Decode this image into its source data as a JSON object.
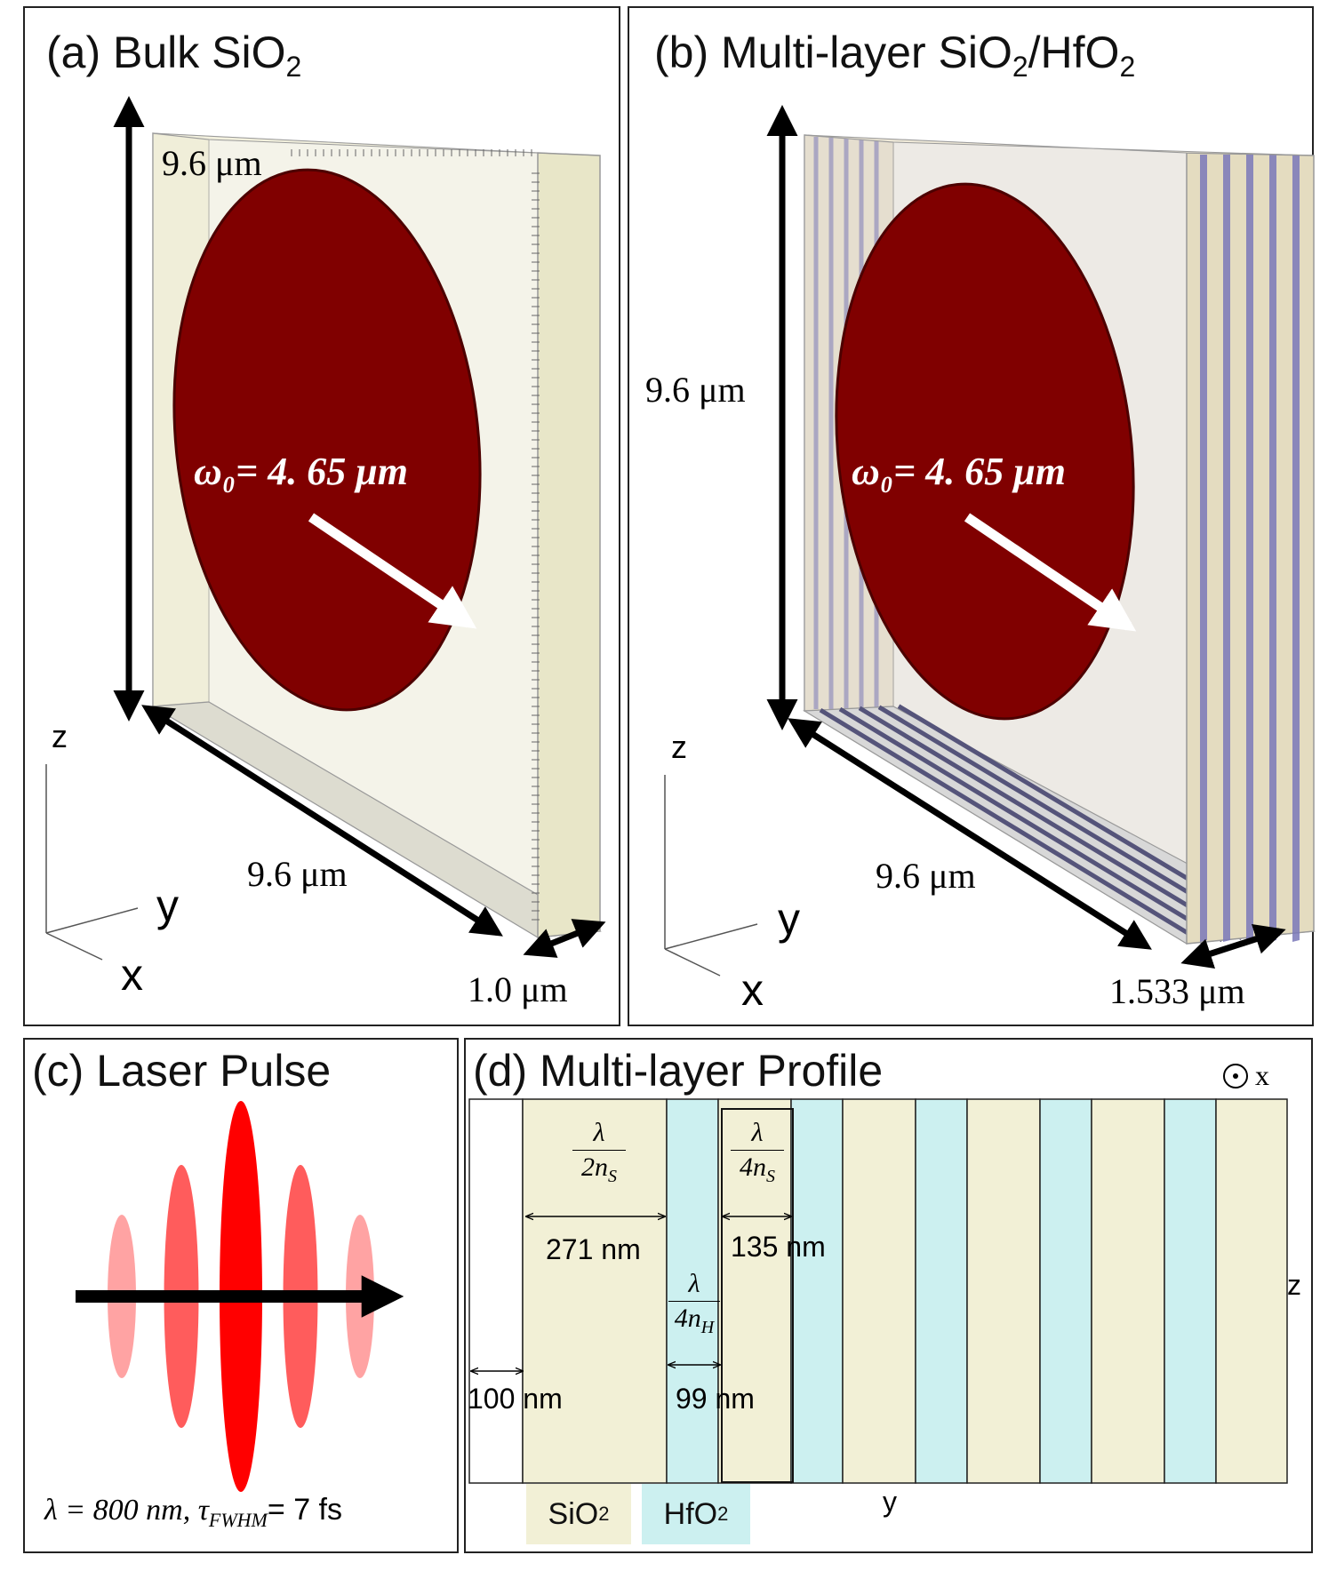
{
  "panels": {
    "a": {
      "title_main": "(a) Bulk SiO",
      "title_sub": "2"
    },
    "b": {
      "title_main": "(b) Multi-layer SiO",
      "title_sub1": "2",
      "title_mid": "/HfO",
      "title_sub2": "2"
    },
    "c": {
      "title": "(c) Laser Pulse"
    },
    "d": {
      "title": "(d) Multi-layer Profile"
    }
  },
  "panel_a": {
    "height_label": "9.6 μm",
    "width_label": "9.6 μm",
    "depth_label": "1.0 μm",
    "beam_label": "ω₀= 4. 65 μm",
    "axis_z": "z",
    "axis_y": "y",
    "axis_x": "x"
  },
  "panel_b": {
    "height_label": "9.6 μm",
    "width_label": "9.6 μm",
    "depth_label": "1.533 μm",
    "beam_label": "ω₀= 4. 65 μm",
    "axis_z": "z",
    "axis_y": "y",
    "axis_x": "x"
  },
  "panel_c": {
    "caption_lambda": "λ = 800 nm, ",
    "caption_tau": "τ",
    "caption_tau_sub": "FWHM",
    "caption_tau_val": "= 7 fs",
    "pulse_envelope": [
      0.2,
      0.55,
      1.0,
      0.55,
      0.2
    ]
  },
  "panel_d": {
    "out_of_plane": "x",
    "axis_z": "z",
    "axis_y": "y",
    "sio2_frac_num": "λ",
    "sio2_frac_den": "2n",
    "sio2_frac_den_sub": "S",
    "sio2_thick": "271 nm",
    "sio2q_frac_num": "λ",
    "sio2q_frac_den": "4n",
    "sio2q_frac_den_sub": "S",
    "sio2q_thick": "135 nm",
    "hfo2_frac_num": "λ",
    "hfo2_frac_den": "4n",
    "hfo2_frac_den_sub": "H",
    "hfo2_thick": "99 nm",
    "vacuum_thick": "100 nm",
    "legend_sio2": "SiO",
    "legend_sio2_sub": "2",
    "legend_hfo2": "HfO",
    "legend_hfo2_sub": "2",
    "layer_sequence": [
      "vacuum",
      "sio2_half",
      "hfo2",
      "sio2_q",
      "hfo2",
      "sio2_q",
      "hfo2",
      "sio2_q",
      "hfo2",
      "sio2_q",
      "hfo2",
      "sio2_q"
    ],
    "colors": {
      "sio2": "#f2f0d6",
      "hfo2": "#ccf0f0",
      "beam": "#800000",
      "pulse": "#ff0000"
    }
  }
}
